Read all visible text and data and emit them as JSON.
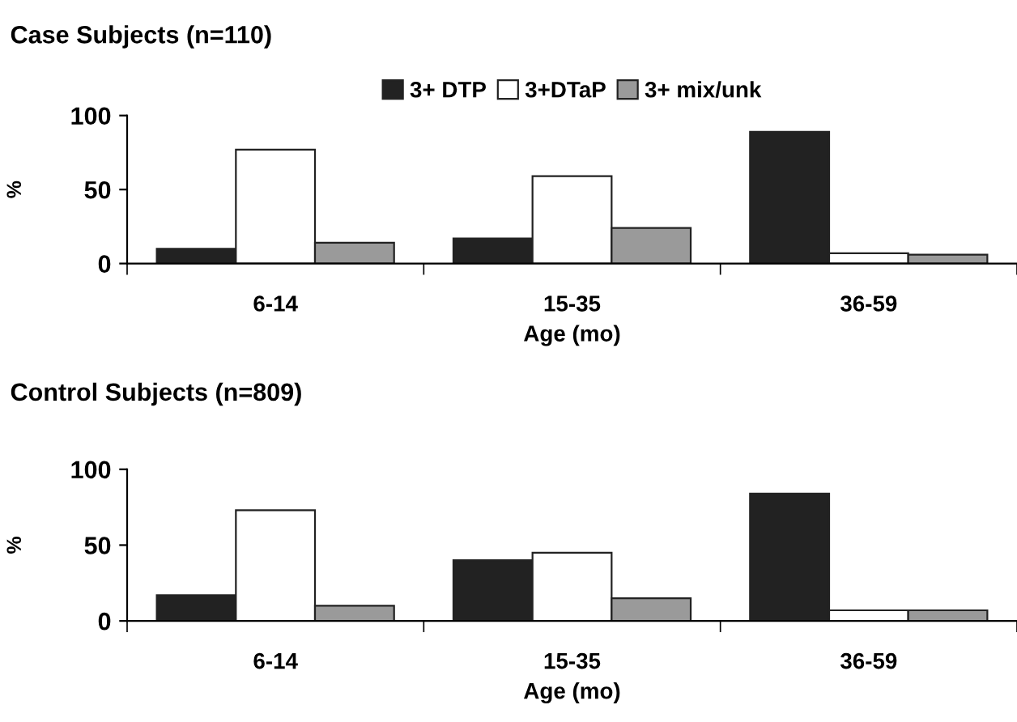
{
  "chart_data": [
    {
      "type": "bar",
      "title": "Case Subjects (n=110)",
      "xlabel": "Age (mo)",
      "ylabel": "%",
      "categories": [
        "6-14",
        "15-35",
        "36-59"
      ],
      "series": [
        {
          "name": "3+ DTP",
          "color": "#222222",
          "values": [
            10,
            17,
            89
          ]
        },
        {
          "name": "3+DTaP",
          "color": "#ffffff",
          "values": [
            77,
            59,
            7
          ]
        },
        {
          "name": "3+ mix/unk",
          "color": "#9a9a9a",
          "values": [
            14,
            24,
            6
          ]
        }
      ],
      "ylim": [
        0,
        100
      ],
      "yticks": [
        0,
        50,
        100
      ],
      "grid": false,
      "legend": "top"
    },
    {
      "type": "bar",
      "title": "Control Subjects (n=809)",
      "xlabel": "Age (mo)",
      "ylabel": "%",
      "categories": [
        "6-14",
        "15-35",
        "36-59"
      ],
      "series": [
        {
          "color": "#222222",
          "values": [
            17,
            40,
            84
          ]
        },
        {
          "color": "#ffffff",
          "values": [
            73,
            45,
            7
          ]
        },
        {
          "color": "#9a9a9a",
          "values": [
            10,
            15,
            7
          ]
        }
      ],
      "ylim": [
        0,
        100
      ],
      "yticks": [
        0,
        50,
        100
      ],
      "grid": false
    }
  ]
}
